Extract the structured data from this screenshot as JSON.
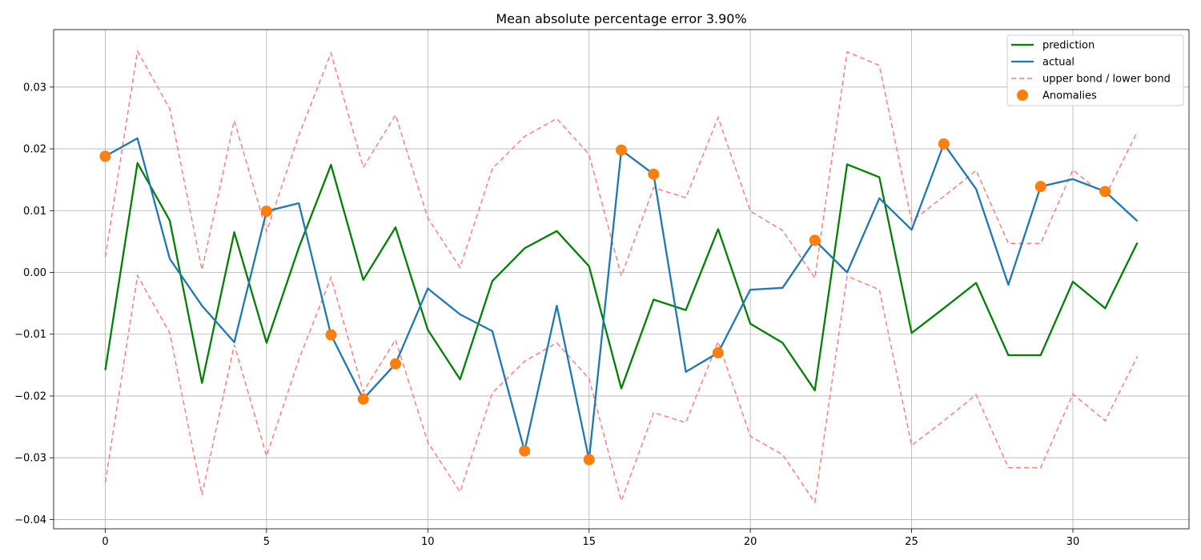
{
  "chart_data": {
    "type": "line",
    "title": "Mean absolute percentage error 3.90%",
    "xlabel": "",
    "ylabel": "",
    "xlim": [
      -1.6,
      33.6
    ],
    "ylim": [
      -0.0415,
      0.0393
    ],
    "x_ticks": [
      0,
      5,
      10,
      15,
      20,
      25,
      30
    ],
    "y_ticks": [
      -0.04,
      -0.03,
      -0.02,
      -0.01,
      0.0,
      0.01,
      0.02,
      0.03
    ],
    "y_tick_labels": [
      "−0.04",
      "−0.03",
      "−0.02",
      "−0.01",
      "0.00",
      "0.01",
      "0.02",
      "0.03"
    ],
    "grid": true,
    "legend_position": "top-right",
    "series": [
      {
        "name": "prediction",
        "color": "#008000",
        "style": "solid",
        "values": [
          -0.0158,
          0.0177,
          0.0084,
          -0.0179,
          0.0065,
          -0.0114,
          0.004,
          0.0174,
          -0.0012,
          0.0073,
          -0.0093,
          -0.0173,
          -0.0014,
          0.0039,
          0.0067,
          0.001,
          -0.0188,
          -0.0044,
          -0.0061,
          0.007,
          -0.0083,
          -0.0114,
          -0.0191,
          0.0175,
          0.0154,
          -0.0098,
          -0.0058,
          -0.0017,
          -0.0134,
          -0.0134,
          -0.0015,
          -0.0058,
          0.0048
        ]
      },
      {
        "name": "actual",
        "color": "#1f77b4",
        "style": "solid",
        "values": [
          0.0188,
          0.0217,
          0.0022,
          -0.0054,
          -0.0113,
          0.0099,
          0.0112,
          -0.0101,
          -0.0205,
          -0.0148,
          -0.0026,
          -0.0068,
          -0.0095,
          -0.0289,
          -0.0054,
          -0.0303,
          0.0198,
          0.0159,
          -0.0161,
          -0.013,
          -0.0028,
          -0.0025,
          0.0052,
          0.0,
          0.012,
          0.0069,
          0.0208,
          0.0135,
          -0.002,
          0.0139,
          0.0151,
          0.0131,
          0.0083
        ]
      },
      {
        "name": "upper bond / lower bond",
        "color": "#ff7f7f",
        "style": "dashed",
        "upper": [
          0.0025,
          0.0358,
          0.0265,
          0.0004,
          0.0246,
          0.0066,
          0.0222,
          0.0355,
          0.017,
          0.0255,
          0.0088,
          0.0008,
          0.0168,
          0.022,
          0.0249,
          0.0191,
          -0.0006,
          0.0137,
          0.0121,
          0.0251,
          0.0099,
          0.0068,
          -0.0009,
          0.0357,
          0.0335,
          0.0083,
          0.0123,
          0.0165,
          0.0047,
          0.0047,
          0.0166,
          0.0123,
          0.0228
        ],
        "lower": [
          -0.034,
          -0.0005,
          -0.0098,
          -0.036,
          -0.0117,
          -0.0297,
          -0.0141,
          -0.0008,
          -0.0193,
          -0.0109,
          -0.0275,
          -0.0355,
          -0.0195,
          -0.0144,
          -0.0114,
          -0.0172,
          -0.037,
          -0.0227,
          -0.0243,
          -0.0112,
          -0.0265,
          -0.0295,
          -0.0372,
          -0.0006,
          -0.0028,
          -0.028,
          -0.024,
          -0.0198,
          -0.0316,
          -0.0316,
          -0.0197,
          -0.024,
          -0.0136
        ]
      },
      {
        "name": "Anomalies",
        "color": "#ff7f0e",
        "style": "markers",
        "x": [
          0,
          5,
          7,
          8,
          9,
          13,
          15,
          16,
          17,
          19,
          22,
          26,
          29,
          31
        ],
        "values": [
          0.0188,
          0.0099,
          -0.0101,
          -0.0205,
          -0.0148,
          -0.0289,
          -0.0303,
          0.0198,
          0.0159,
          -0.013,
          0.0052,
          0.0208,
          0.0139,
          0.0131
        ]
      }
    ],
    "legend": [
      "prediction",
      "actual",
      "upper bond / lower bond",
      "Anomalies"
    ]
  }
}
